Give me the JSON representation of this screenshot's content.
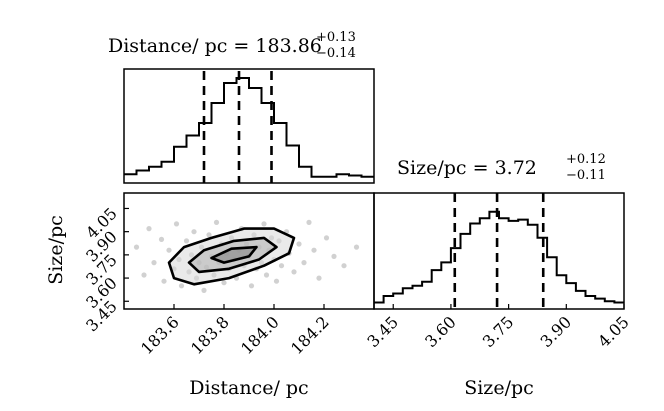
{
  "chart_data": [
    {
      "type": "histogram",
      "title": {
        "prefix": "Distance/ pc = ",
        "value": "183.86",
        "plus": "+0.13",
        "minus": "−0.14"
      },
      "x": [
        183.4,
        183.45,
        183.5,
        183.55,
        183.6,
        183.65,
        183.7,
        183.75,
        183.8,
        183.85,
        183.9,
        183.95,
        184.0,
        184.05,
        184.1,
        184.15,
        184.2,
        184.25,
        184.3,
        184.35,
        184.4
      ],
      "values": [
        0.07,
        0.1,
        0.13,
        0.17,
        0.29,
        0.38,
        0.48,
        0.64,
        0.8,
        0.84,
        0.76,
        0.64,
        0.48,
        0.3,
        0.13,
        0.05,
        0.05,
        0.07,
        0.06,
        0.05
      ],
      "quantiles": [
        183.72,
        183.86,
        183.99
      ],
      "xlim": [
        183.4,
        184.4
      ]
    },
    {
      "type": "histogram",
      "title": {
        "prefix": "Size/pc = ",
        "value": "3.72",
        "plus": "+0.12",
        "minus": "−0.11"
      },
      "x": [
        3.4,
        3.425,
        3.45,
        3.475,
        3.5,
        3.525,
        3.55,
        3.575,
        3.6,
        3.625,
        3.65,
        3.675,
        3.7,
        3.725,
        3.75,
        3.775,
        3.8,
        3.825,
        3.85,
        3.875,
        3.9,
        3.925,
        3.95,
        3.975,
        4.0,
        4.025,
        4.05
      ],
      "values": [
        0.05,
        0.1,
        0.12,
        0.16,
        0.18,
        0.21,
        0.3,
        0.36,
        0.47,
        0.58,
        0.66,
        0.7,
        0.75,
        0.7,
        0.68,
        0.69,
        0.65,
        0.55,
        0.4,
        0.26,
        0.2,
        0.14,
        0.1,
        0.08,
        0.06,
        0.05
      ],
      "quantiles": [
        3.61,
        3.72,
        3.84
      ],
      "xlim": [
        3.4,
        4.05
      ],
      "xticks": [
        "3.45",
        "3.60",
        "3.75",
        "3.90",
        "4.05"
      ],
      "xlabel": "Size/pc"
    },
    {
      "type": "scatter",
      "xlim": [
        183.4,
        184.4
      ],
      "ylim": [
        3.4,
        4.15
      ],
      "xticks": [
        "183.6",
        "183.8",
        "184.0",
        "184.2"
      ],
      "yticks": [
        "3.45",
        "3.60",
        "3.75",
        "3.90",
        "4.05"
      ],
      "xlabel": "Distance/ pc",
      "ylabel": "Size/pc",
      "points": [
        [
          183.45,
          3.8
        ],
        [
          183.48,
          3.62
        ],
        [
          183.5,
          3.92
        ],
        [
          183.52,
          3.7
        ],
        [
          183.55,
          3.85
        ],
        [
          183.56,
          3.58
        ],
        [
          183.58,
          3.78
        ],
        [
          183.6,
          3.66
        ],
        [
          183.61,
          3.95
        ],
        [
          183.62,
          3.72
        ],
        [
          183.63,
          3.55
        ],
        [
          183.65,
          3.84
        ],
        [
          183.66,
          3.64
        ],
        [
          183.67,
          3.75
        ],
        [
          183.68,
          3.9
        ],
        [
          183.69,
          3.6
        ],
        [
          183.7,
          3.7
        ],
        [
          183.71,
          3.8
        ],
        [
          183.72,
          3.52
        ],
        [
          183.73,
          3.67
        ],
        [
          183.74,
          3.88
        ],
        [
          183.75,
          3.74
        ],
        [
          183.76,
          3.62
        ],
        [
          183.77,
          3.96
        ],
        [
          183.78,
          3.7
        ],
        [
          183.79,
          3.82
        ],
        [
          183.8,
          3.57
        ],
        [
          183.81,
          3.76
        ],
        [
          183.82,
          3.66
        ],
        [
          183.83,
          3.86
        ],
        [
          183.84,
          3.72
        ],
        [
          183.85,
          3.6
        ],
        [
          183.86,
          3.78
        ],
        [
          183.87,
          3.92
        ],
        [
          183.88,
          3.68
        ],
        [
          183.89,
          3.82
        ],
        [
          183.9,
          3.74
        ],
        [
          183.91,
          3.55
        ],
        [
          183.92,
          3.88
        ],
        [
          183.93,
          3.66
        ],
        [
          183.94,
          3.8
        ],
        [
          183.95,
          3.7
        ],
        [
          183.96,
          3.95
        ],
        [
          183.97,
          3.62
        ],
        [
          183.98,
          3.78
        ],
        [
          183.99,
          3.86
        ],
        [
          184.0,
          3.72
        ],
        [
          184.01,
          3.58
        ],
        [
          184.02,
          3.84
        ],
        [
          184.03,
          3.68
        ],
        [
          184.05,
          3.9
        ],
        [
          184.06,
          3.76
        ],
        [
          184.08,
          3.64
        ],
        [
          184.1,
          3.82
        ],
        [
          184.12,
          3.7
        ],
        [
          184.14,
          3.96
        ],
        [
          184.16,
          3.78
        ],
        [
          184.18,
          3.6
        ],
        [
          184.21,
          3.86
        ],
        [
          184.24,
          3.74
        ],
        [
          184.28,
          3.68
        ],
        [
          184.33,
          3.8
        ]
      ],
      "contours": [
        [
          [
            183.58,
            3.7
          ],
          [
            183.64,
            3.8
          ],
          [
            183.75,
            3.86
          ],
          [
            183.88,
            3.92
          ],
          [
            184.0,
            3.92
          ],
          [
            184.08,
            3.86
          ],
          [
            184.06,
            3.76
          ],
          [
            183.96,
            3.68
          ],
          [
            183.82,
            3.6
          ],
          [
            183.68,
            3.56
          ],
          [
            183.6,
            3.6
          ]
        ],
        [
          [
            183.66,
            3.7
          ],
          [
            183.72,
            3.78
          ],
          [
            183.84,
            3.84
          ],
          [
            183.96,
            3.86
          ],
          [
            184.01,
            3.8
          ],
          [
            183.94,
            3.72
          ],
          [
            183.82,
            3.66
          ],
          [
            183.7,
            3.64
          ]
        ],
        [
          [
            183.75,
            3.73
          ],
          [
            183.83,
            3.79
          ],
          [
            183.93,
            3.8
          ],
          [
            183.9,
            3.74
          ],
          [
            183.8,
            3.7
          ]
        ]
      ]
    }
  ]
}
